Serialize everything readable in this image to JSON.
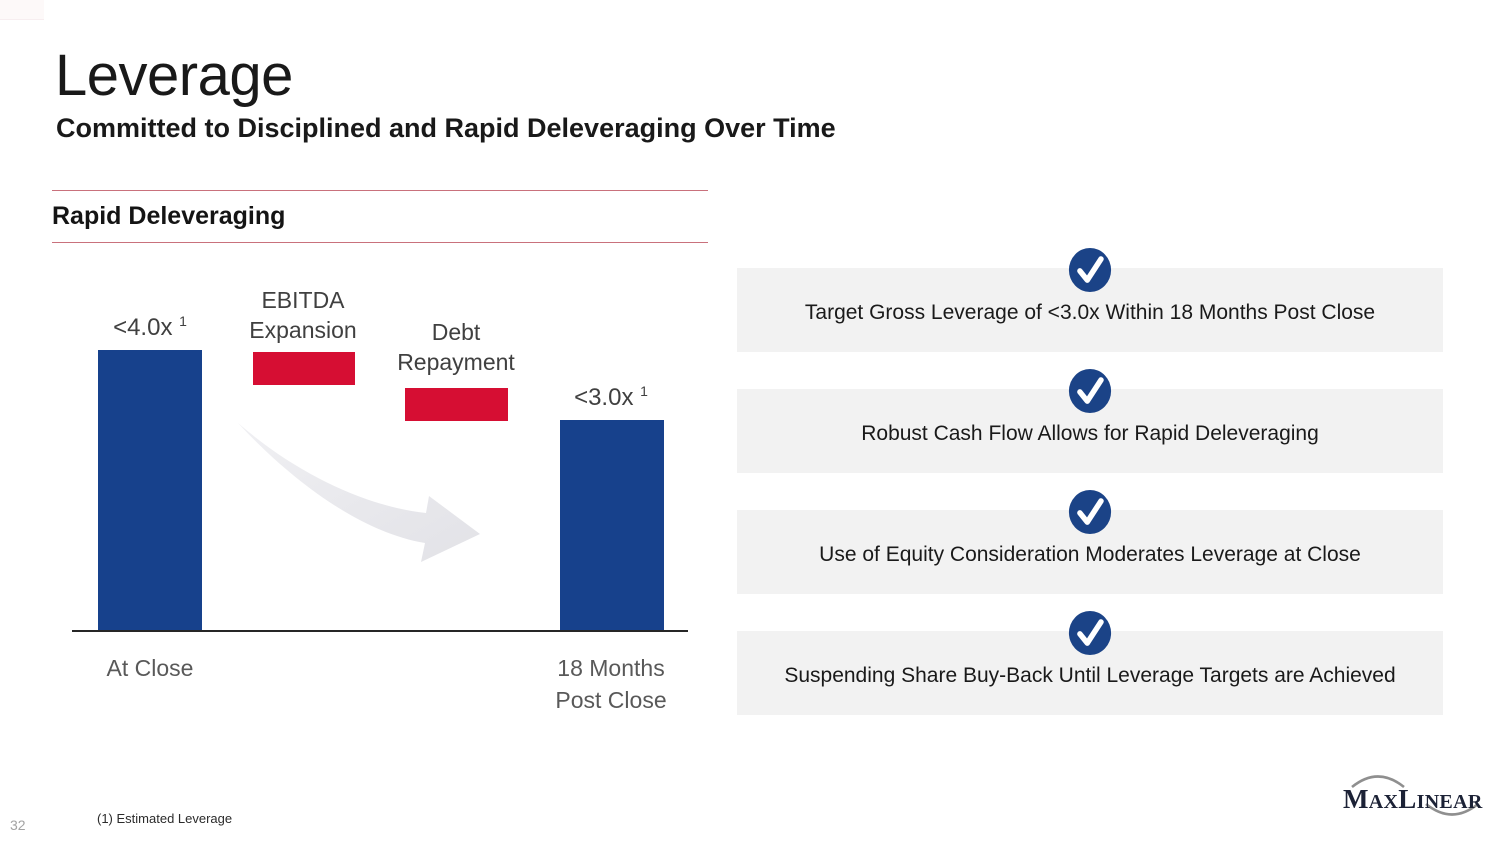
{
  "slide": {
    "title": "Leverage",
    "subtitle": "Committed to Disciplined and Rapid Deleveraging Over Time",
    "section_header": "Rapid Deleveraging",
    "footnote": "(1) Estimated Leverage",
    "page_number": "32"
  },
  "chart_data": {
    "type": "bar",
    "title": "Rapid Deleveraging",
    "categories": [
      "At Close",
      "18 Months Post Close"
    ],
    "values": [
      4.0,
      3.0
    ],
    "ylim": [
      0,
      4.5
    ],
    "gridlines": false,
    "value_axis_visible": false,
    "bars": [
      {
        "category": "At Close",
        "value": 4.0,
        "label": "<4.0x",
        "label_superscript": "1",
        "color": "#17418c"
      },
      {
        "category": "18 Months Post Close",
        "value": 3.0,
        "label": "<3.0x",
        "label_superscript": "1",
        "color": "#17418c"
      }
    ],
    "bridge_steps": [
      {
        "label": "EBITDA Expansion",
        "color": "#d60e33"
      },
      {
        "label": "Debt Repayment",
        "color": "#d60e33"
      }
    ],
    "annotations": [
      "gray decreasing swoosh arrow from first bar toward second bar"
    ]
  },
  "checklist": {
    "items": [
      {
        "text": "Target Gross Leverage of <3.0x Within 18 Months Post Close"
      },
      {
        "text": "Robust Cash Flow Allows for Rapid Deleveraging"
      },
      {
        "text": "Use of Equity Consideration Moderates Leverage at Close"
      },
      {
        "text": "Suspending Share Buy-Back Until Leverage Targets are Achieved"
      }
    ],
    "check_color": "#1b4387",
    "box_color": "#f2f2f2"
  },
  "logo": {
    "name": "MaxLinear",
    "part1": "M",
    "part2": "AX",
    "part3": "L",
    "part4": "INEAR"
  },
  "colors": {
    "bar_blue": "#17418c",
    "step_red": "#d60e33",
    "accent_line": "#c9717c",
    "box_gray": "#f2f2f2",
    "check_blue": "#1b4387",
    "text_dark": "#1a1a1a",
    "text_gray": "#595959"
  }
}
